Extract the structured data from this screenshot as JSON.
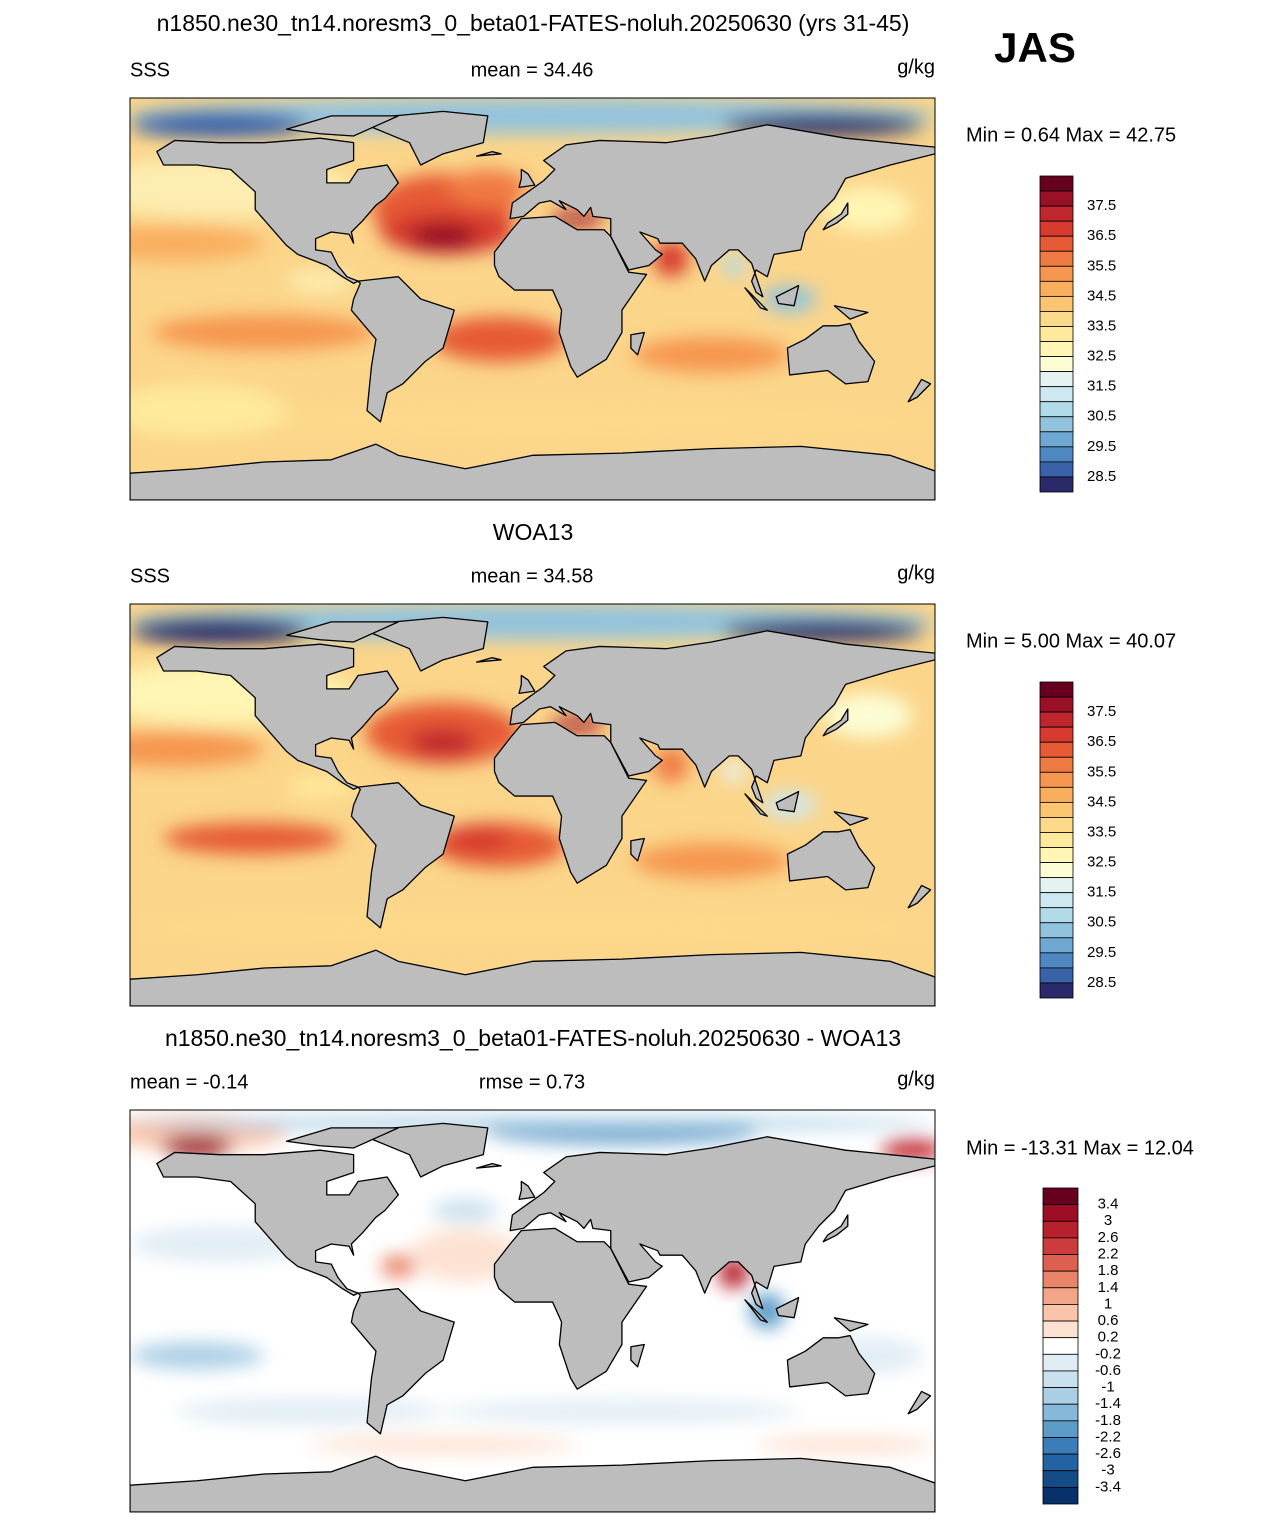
{
  "header": {
    "title": "n1850.ne30_tn14.noresm3_0_beta01-FATES-noluh.20250630 (yrs 31-45)",
    "season": "JAS"
  },
  "panels": [
    {
      "left_label": "SSS",
      "center_label": "mean = 34.46",
      "units": "g/kg",
      "range_label": "Min = 0.64 Max = 42.75",
      "colorbar": {
        "labels": [
          37.5,
          36.5,
          35.5,
          34.5,
          33.5,
          32.5,
          31.5,
          30.5,
          29.5,
          28.5
        ],
        "colors": [
          "#67001f",
          "#9a1027",
          "#c0262d",
          "#d73a2f",
          "#e65a36",
          "#f07a43",
          "#f6964f",
          "#f9ae5e",
          "#fbc572",
          "#fdd98a",
          "#fee99d",
          "#fff5b4",
          "#fcfdd4",
          "#e4f3f2",
          "#cde8f0",
          "#b2dbea",
          "#92c3de",
          "#6fa8d2",
          "#4f88c0",
          "#3a62a8",
          "#2a2a6b"
        ]
      }
    },
    {
      "title": "WOA13",
      "left_label": "SSS",
      "center_label": "mean = 34.58",
      "units": "g/kg",
      "range_label": "Min = 5.00 Max = 40.07",
      "colorbar": {
        "labels": [
          37.5,
          36.5,
          35.5,
          34.5,
          33.5,
          32.5,
          31.5,
          30.5,
          29.5,
          28.5
        ],
        "colors": [
          "#67001f",
          "#9a1027",
          "#c0262d",
          "#d73a2f",
          "#e65a36",
          "#f07a43",
          "#f6964f",
          "#f9ae5e",
          "#fbc572",
          "#fdd98a",
          "#fee99d",
          "#fff5b4",
          "#fcfdd4",
          "#e4f3f2",
          "#cde8f0",
          "#b2dbea",
          "#92c3de",
          "#6fa8d2",
          "#4f88c0",
          "#3a62a8",
          "#2a2a6b"
        ]
      }
    },
    {
      "title": "n1850.ne30_tn14.noresm3_0_beta01-FATES-noluh.20250630 - WOA13",
      "left_label": "mean = -0.14",
      "center_label": "rmse = 0.73",
      "units": "g/kg",
      "range_label": "Min = -13.31 Max = 12.04",
      "colorbar": {
        "labels": [
          3.4,
          3,
          2.6,
          2.2,
          1.8,
          1.4,
          1,
          0.6,
          0.2,
          -0.2,
          -0.6,
          -1,
          -1.4,
          -1.8,
          -2.2,
          -2.6,
          -3,
          -3.4
        ],
        "colors": [
          "#67001f",
          "#9e0d26",
          "#b8202e",
          "#cc3c3c",
          "#dc5f50",
          "#e98468",
          "#f3a587",
          "#f9c4a9",
          "#fde2d2",
          "#ffffff",
          "#e1edf5",
          "#c9e0ee",
          "#aacfe5",
          "#85b8d9",
          "#5d9bc9",
          "#3b7db8",
          "#2363a3",
          "#144c88",
          "#08306b"
        ]
      }
    }
  ]
}
